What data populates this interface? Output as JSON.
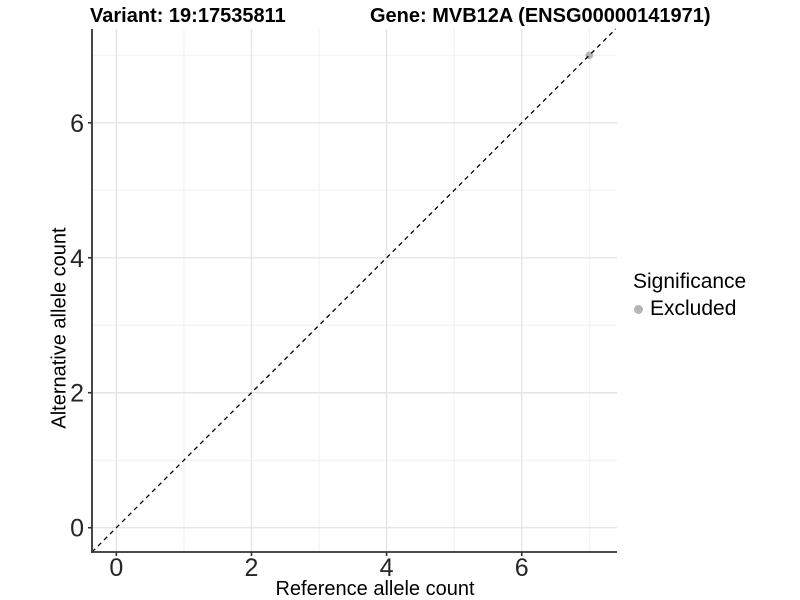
{
  "title": {
    "left": "Variant: 19:17535811",
    "right": "Gene: MVB12A (ENSG00000141971)"
  },
  "colors": {
    "background": "#ffffff",
    "grid_major": "#e5e5e5",
    "grid_minor": "#f2f2f2",
    "axis_line": "#333333",
    "tick_mark": "#333333",
    "tick_text": "#262626",
    "reference_line": "#000000",
    "excluded_point": "#b5b5b5"
  },
  "chart_data": {
    "type": "scatter",
    "title": "Variant: 19:17535811    Gene: MVB12A (ENSG00000141971)",
    "title_parts": [
      "Variant: 19:17535811",
      "Gene: MVB12A (ENSG00000141971)"
    ],
    "xlabel": "Reference allele count",
    "ylabel": "Alternative allele count",
    "xlim": [
      -0.36,
      7.41
    ],
    "ylim": [
      -0.36,
      7.39
    ],
    "x_ticks": [
      0,
      2,
      4,
      6
    ],
    "y_ticks": [
      0,
      2,
      4,
      6
    ],
    "x_minor_ticks": [
      1,
      3,
      5,
      7
    ],
    "y_minor_ticks": [
      1,
      3,
      5,
      7
    ],
    "grid": "major and minor, light gray on white panel",
    "reference_line": {
      "equation": "y = x",
      "style": "dashed",
      "color": "#000000"
    },
    "series": [
      {
        "name": "Excluded",
        "color": "#b5b5b5",
        "marker": "circle",
        "points": [
          {
            "x": 7,
            "y": 7
          }
        ]
      }
    ],
    "legend": {
      "title": "Significance",
      "position": "right",
      "entries": [
        {
          "label": "Excluded",
          "color": "#b5b5b5",
          "marker": "circle"
        }
      ]
    }
  }
}
